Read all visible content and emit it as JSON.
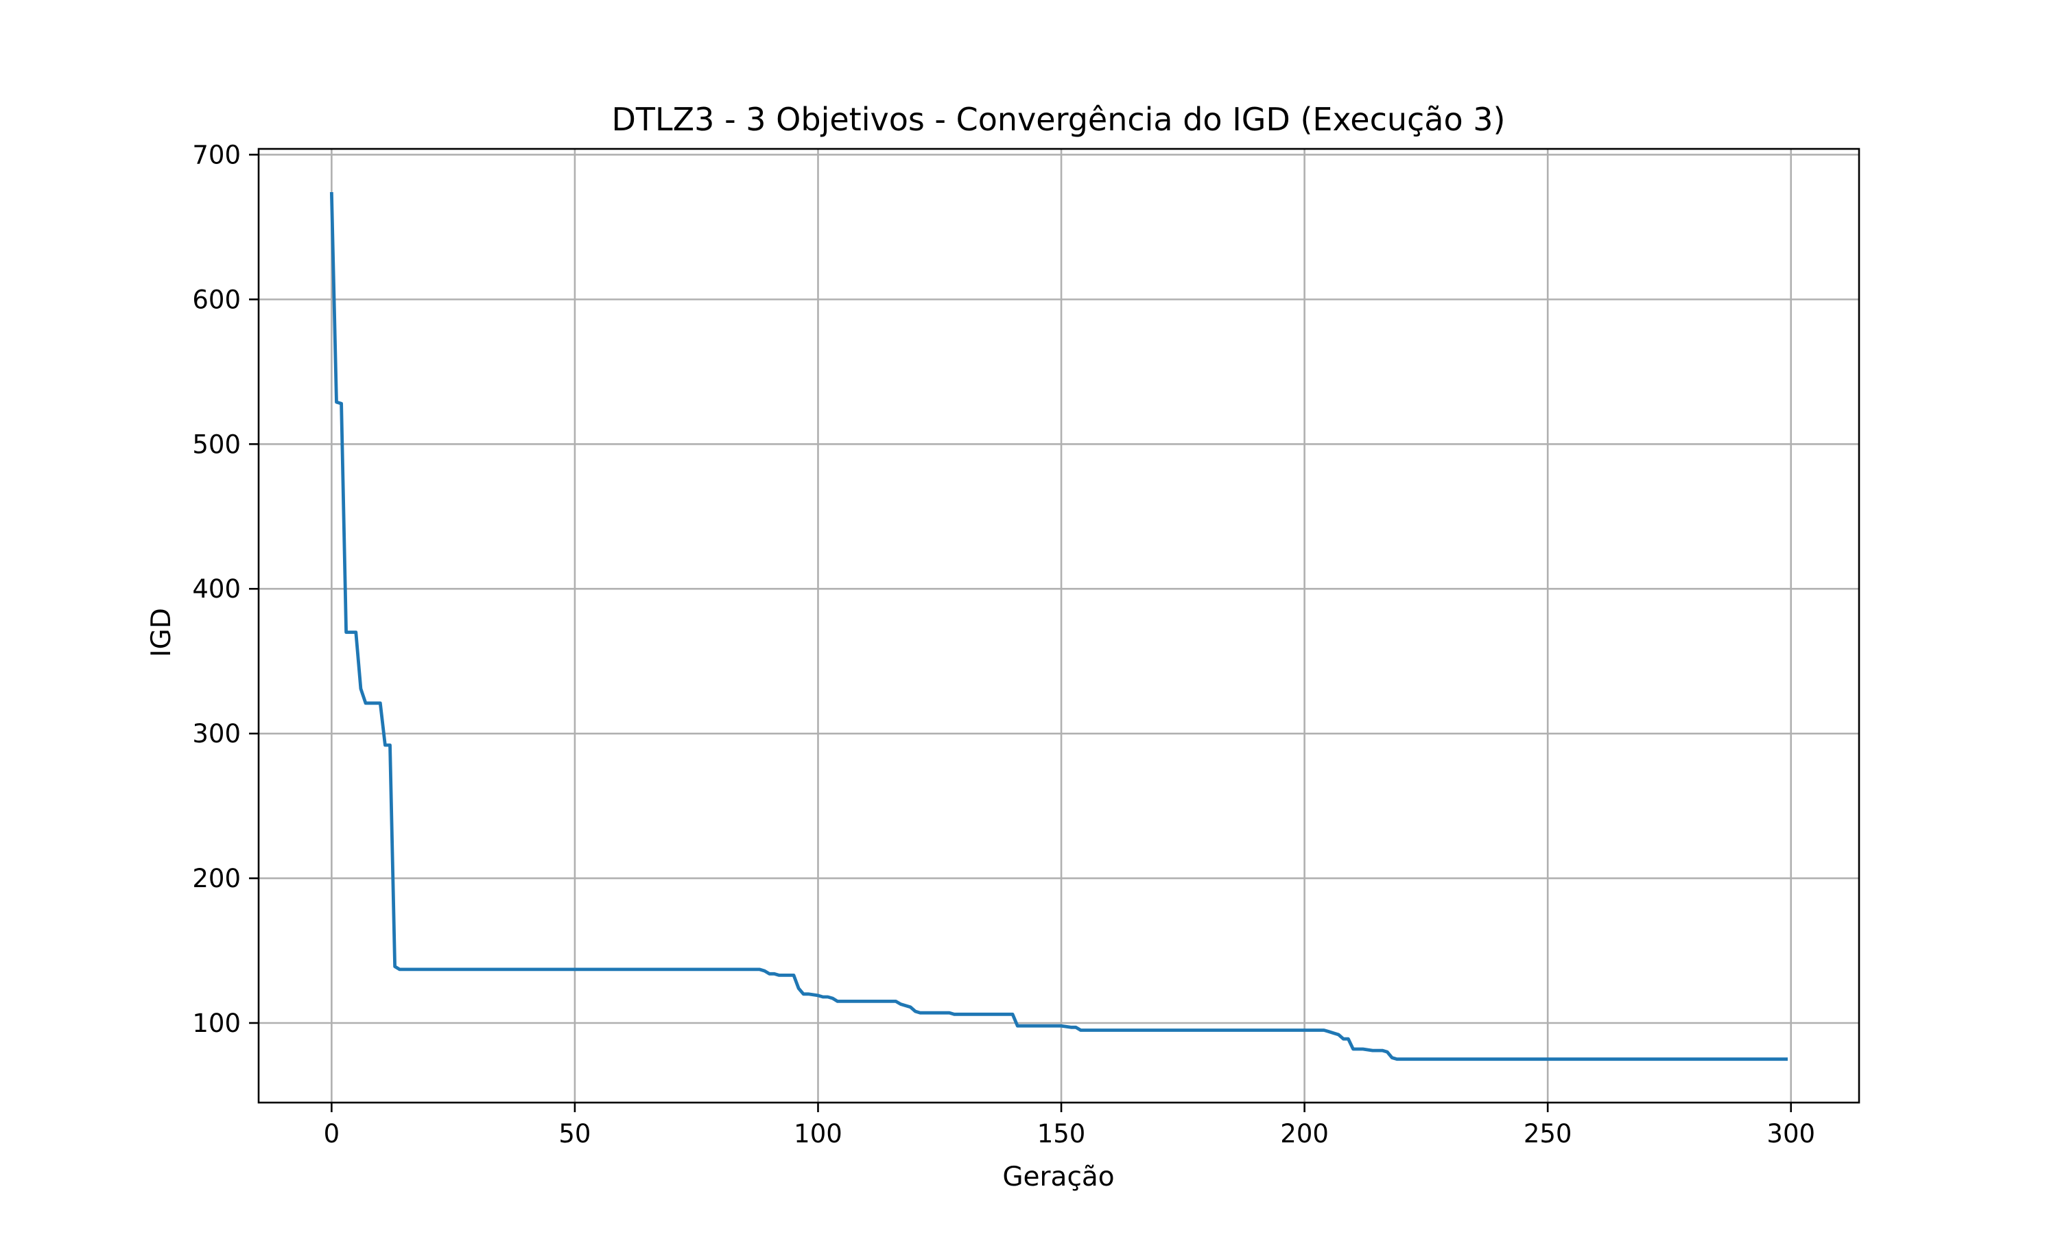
{
  "chart_data": {
    "type": "line",
    "title": "DTLZ3 - 3 Objetivos - Convergência do IGD (Execução 3)",
    "xlabel": "Geração",
    "ylabel": "IGD",
    "xlim": [
      -15,
      314
    ],
    "ylim": [
      45,
      704
    ],
    "xticks": [
      0,
      50,
      100,
      150,
      200,
      250,
      300
    ],
    "yticks": [
      100,
      200,
      300,
      400,
      500,
      600,
      700
    ],
    "grid": true,
    "legend": "none",
    "color": "#1f77b4",
    "series": [
      {
        "x": [
          0,
          1,
          2,
          3,
          4,
          5,
          6,
          7,
          8,
          9,
          10,
          11,
          12,
          13,
          14,
          15,
          88,
          89,
          90,
          91,
          92,
          95,
          96,
          97,
          98,
          100,
          101,
          102,
          103,
          104,
          116,
          117,
          118,
          119,
          120,
          121,
          126,
          127,
          128,
          137,
          138,
          139,
          140,
          141,
          149,
          150,
          152,
          153,
          154,
          203,
          204,
          205,
          206,
          207,
          208,
          209,
          210,
          211,
          212,
          214,
          215,
          216,
          217,
          218,
          219,
          299
        ],
        "y": [
          673,
          529,
          528,
          370,
          370,
          370,
          331,
          321,
          321,
          321,
          321,
          292,
          292,
          139,
          137,
          137,
          137,
          136,
          134,
          134,
          133,
          133,
          124,
          120,
          120,
          119,
          118,
          118,
          117,
          115,
          115,
          113,
          112,
          111,
          108,
          107,
          107,
          107,
          106,
          106,
          106,
          106,
          106,
          98,
          98,
          98,
          97,
          97,
          95,
          95,
          95,
          94,
          93,
          92,
          89,
          89,
          82,
          82,
          82,
          81,
          81,
          81,
          80,
          76,
          75,
          75
        ]
      }
    ]
  }
}
